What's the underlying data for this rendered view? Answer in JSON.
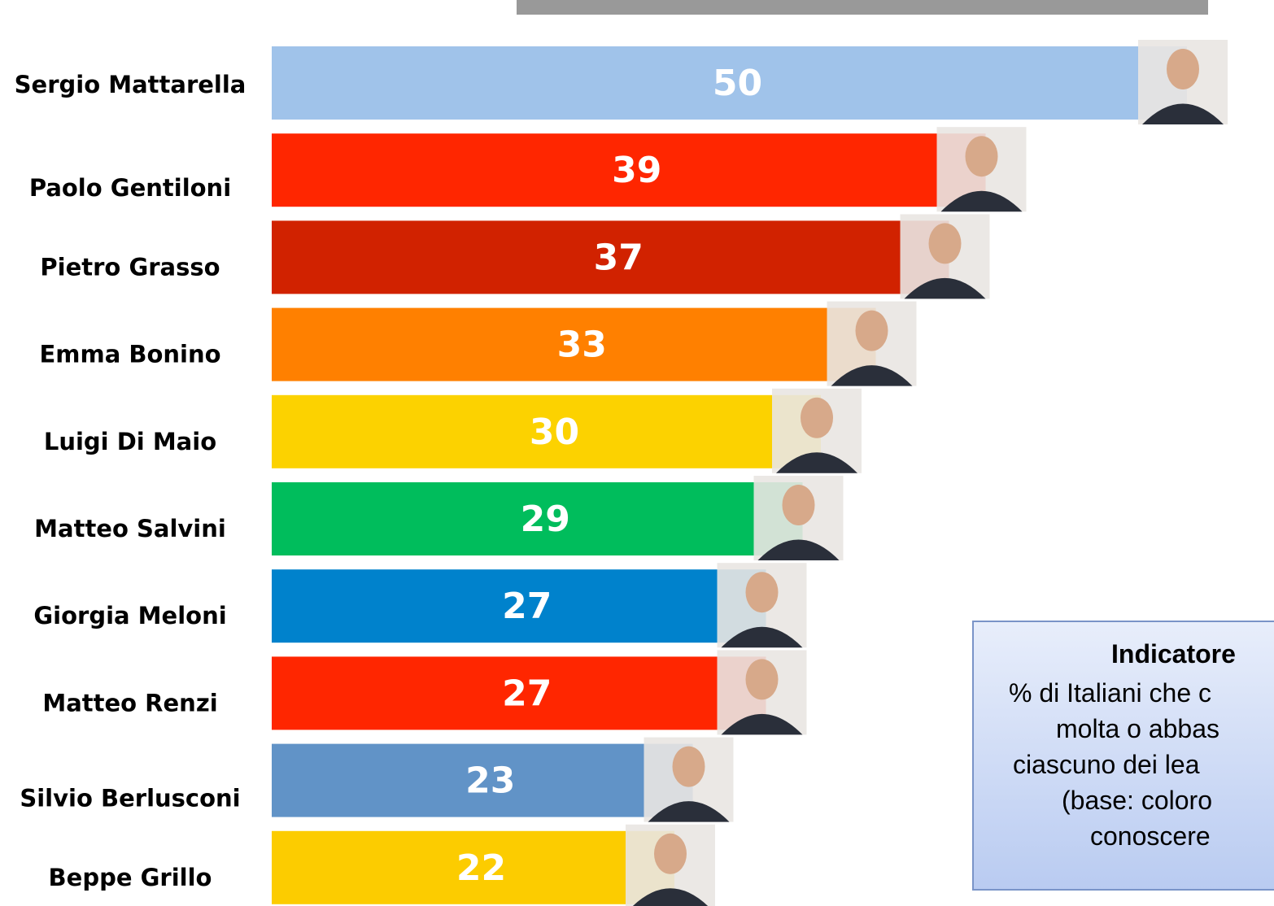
{
  "chart_data": {
    "type": "bar",
    "orientation": "horizontal",
    "categories": [
      "Sergio Mattarella",
      "Paolo Gentiloni",
      "Pietro Grasso",
      "Emma Bonino",
      "Luigi Di Maio",
      "Matteo Salvini",
      "Giorgia Meloni",
      "Matteo Renzi",
      "Silvio Berlusconi",
      "Beppe Grillo"
    ],
    "values": [
      50,
      39,
      37,
      33,
      30,
      29,
      27,
      27,
      23,
      22
    ],
    "colors": [
      "#a0c3ea",
      "#ff2600",
      "#d12200",
      "#ff8000",
      "#fcd200",
      "#00bd5c",
      "#0082cc",
      "#ff2600",
      "#6193c7",
      "#fccc00"
    ],
    "note": {
      "title": "Indicatore",
      "lines": [
        "% di Italiani che c",
        "molta o abbas",
        "ciascuno dei lea",
        "(base: coloro",
        "conoscere"
      ]
    }
  }
}
